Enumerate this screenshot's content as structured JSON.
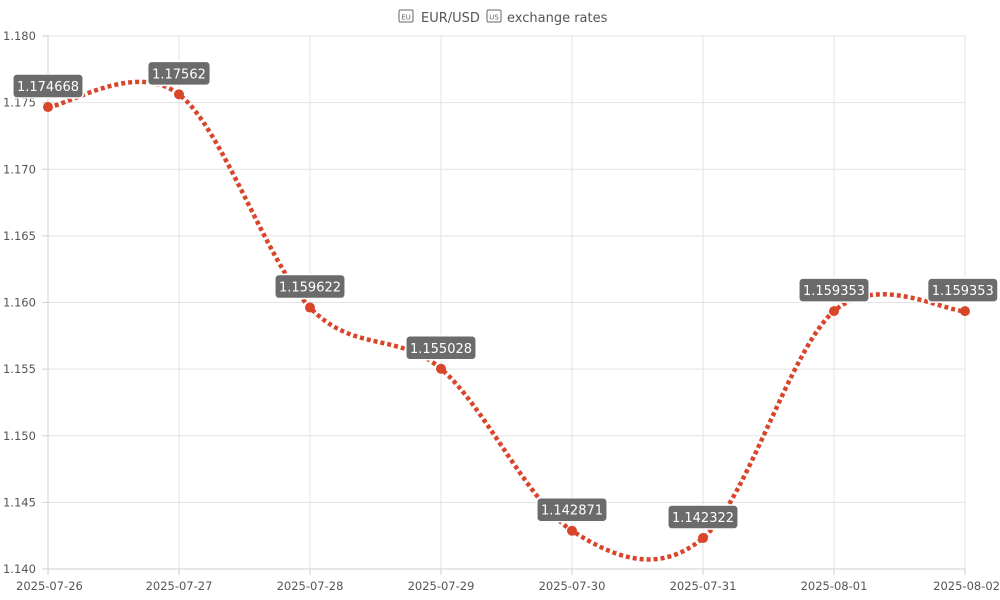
{
  "chart_data": {
    "type": "line",
    "title_prefix_icon": "flag-eu-icon",
    "title_part1": "EUR/USD",
    "title_mid_icon": "flag-us-icon",
    "title_part2": "exchange rates",
    "x": [
      "2025-07-26",
      "2025-07-27",
      "2025-07-28",
      "2025-07-29",
      "2025-07-30",
      "2025-07-31",
      "2025-08-01",
      "2025-08-02"
    ],
    "series": [
      {
        "values": [
          1.174668,
          1.17562,
          1.159622,
          1.155028,
          1.142871,
          1.142322,
          1.159353,
          1.159353
        ],
        "labels": [
          "1.174668",
          "1.17562",
          "1.159622",
          "1.155028",
          "1.142871",
          "1.142322",
          "1.159353",
          "1.159353"
        ],
        "color": "#d9452b",
        "line_style": "dotted",
        "smooth": true
      }
    ],
    "ylim": [
      1.14,
      1.18
    ],
    "yticks": [
      "1.140",
      "1.145",
      "1.150",
      "1.155",
      "1.160",
      "1.165",
      "1.170",
      "1.175",
      "1.180"
    ],
    "grid": true,
    "legend": "none",
    "label_bg_color": "#6b6b6b",
    "label_text_color": "#ffffff"
  }
}
